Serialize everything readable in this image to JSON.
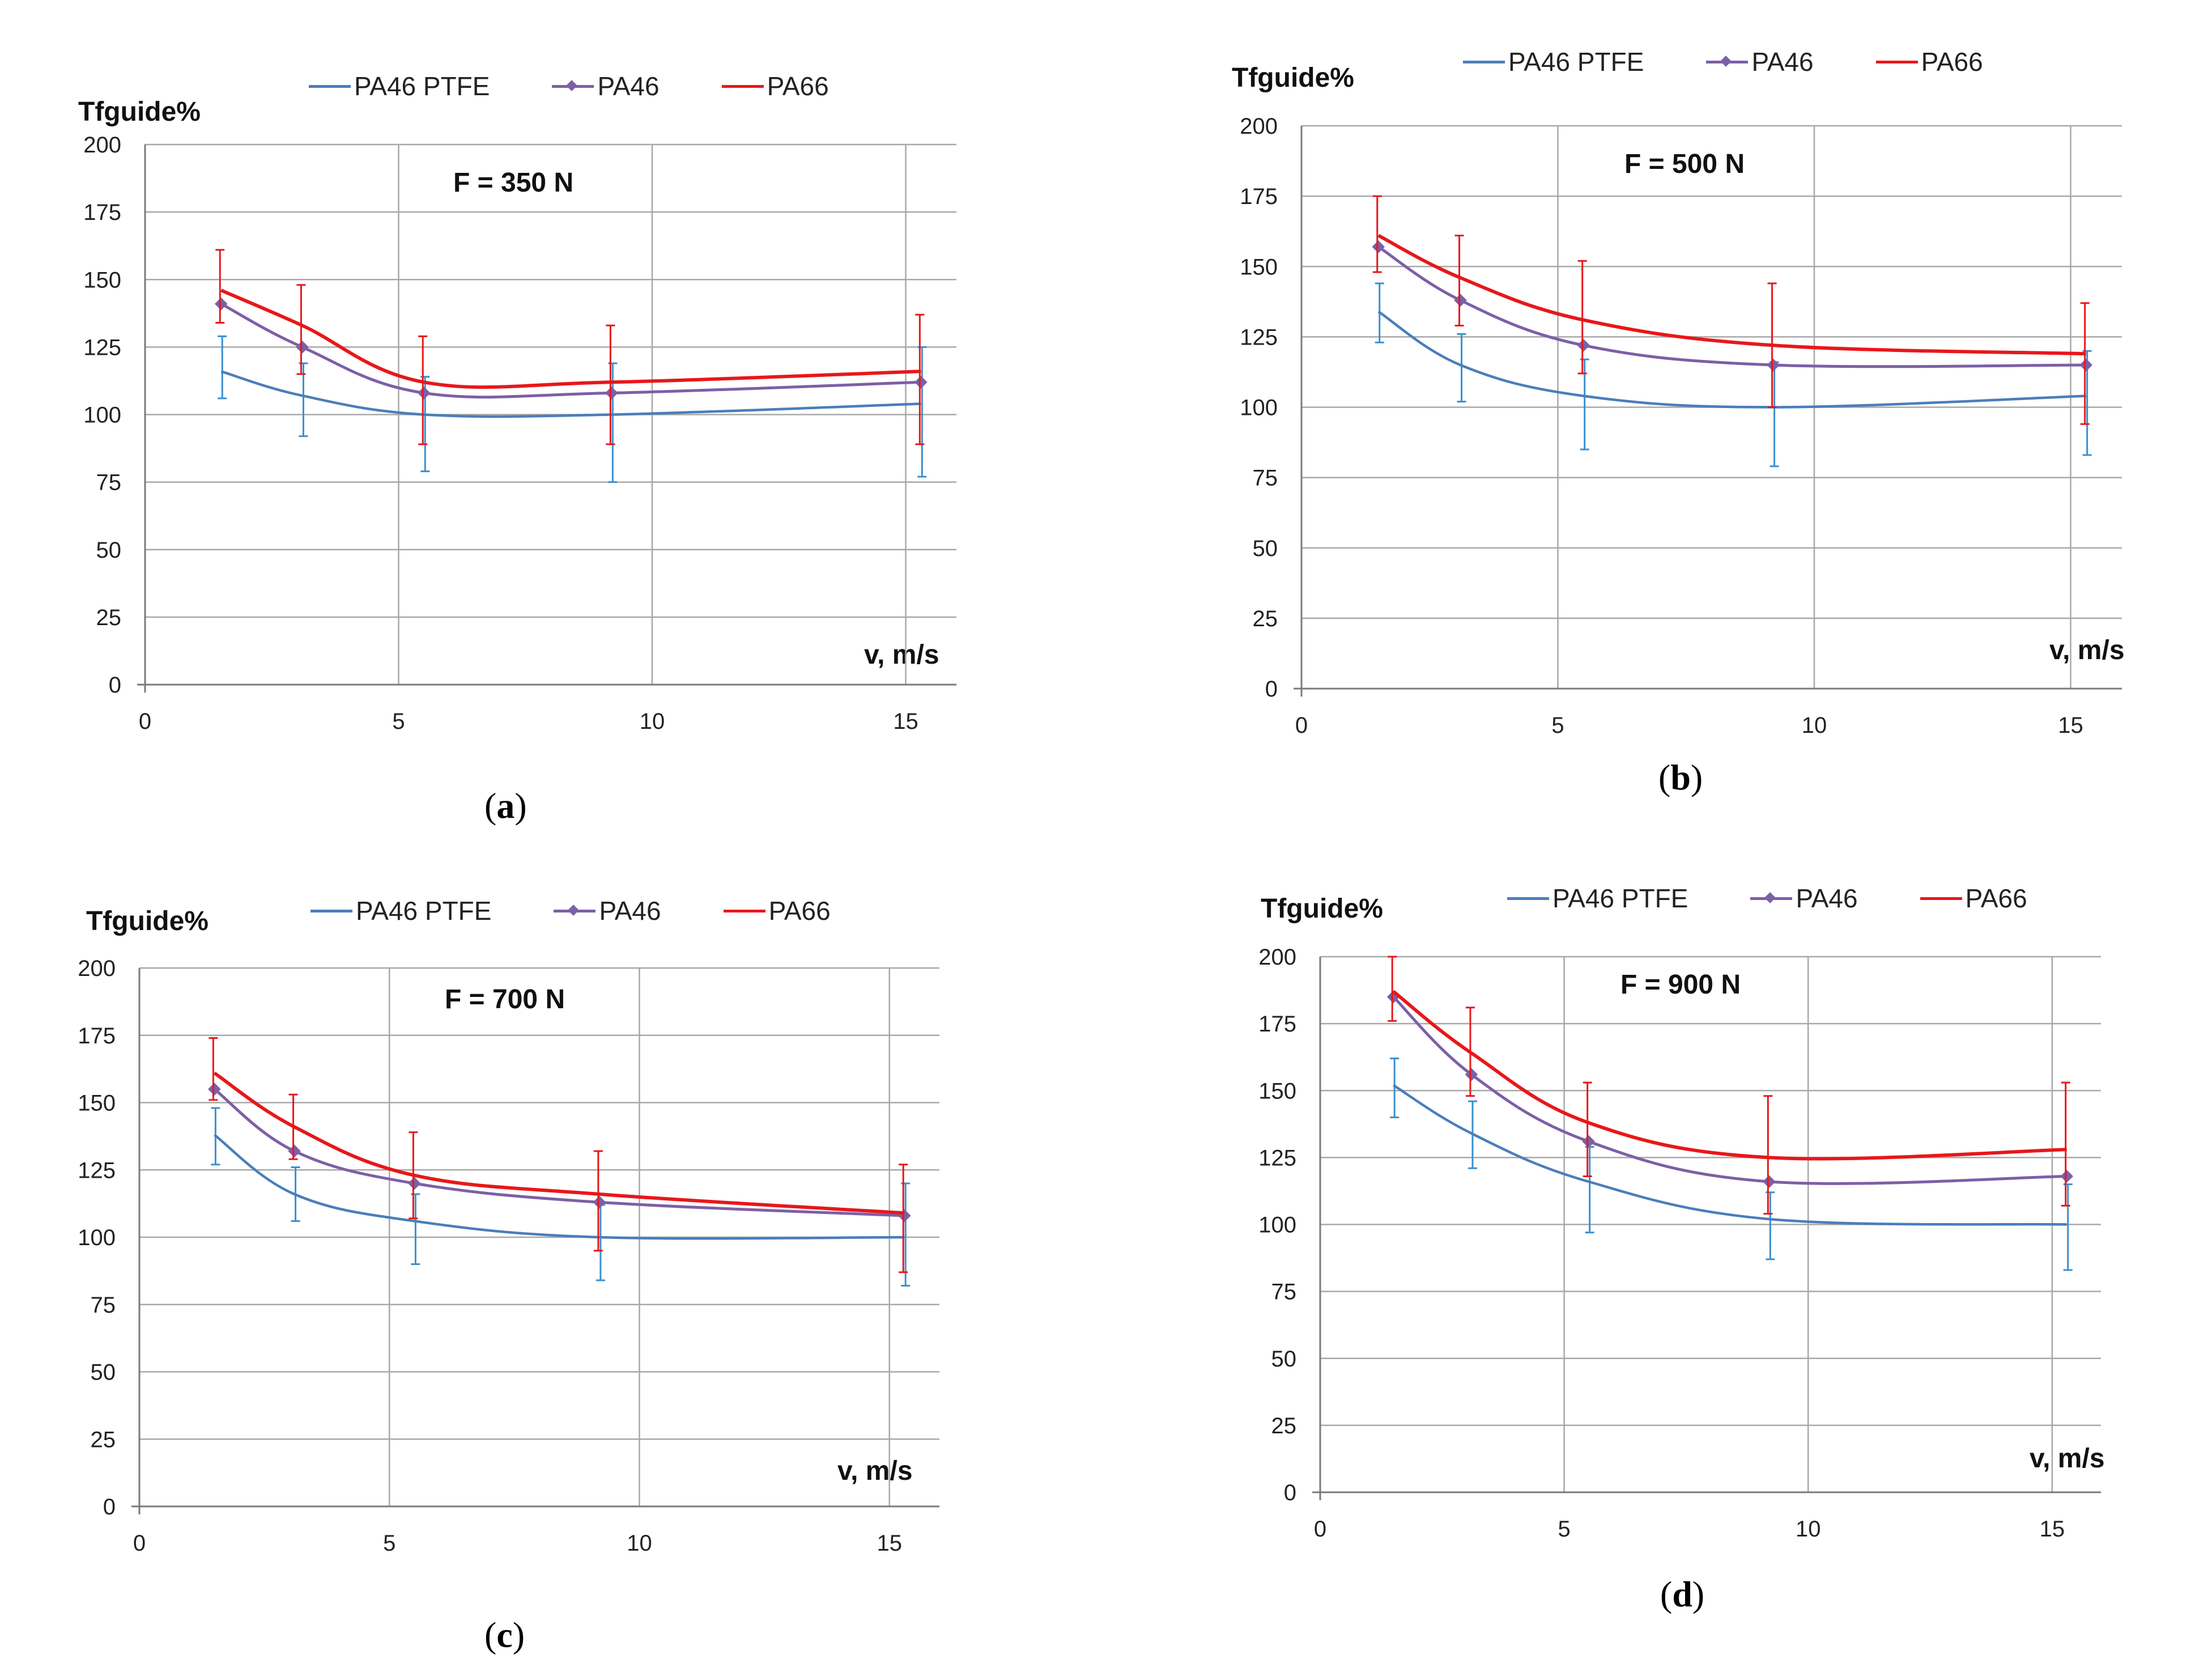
{
  "colors": {
    "ptfe": "#4a7ebb",
    "pa46": "#7d5fa6",
    "pa66": "#e8171a",
    "ptfe_err": "#3a8fd0",
    "pa66_err": "#e8171a",
    "grid": "#a8a8a8",
    "axis": "#7a7a7a"
  },
  "legend": {
    "ptfe": "PA46 PTFE",
    "pa46": "PA46",
    "pa66": "PA66"
  },
  "chart_data": [
    {
      "type": "line",
      "panel": "a",
      "caption_letter": "a",
      "title": "F = 350 N",
      "ylabel": "Tfguide%",
      "xlabel": "v, m/s",
      "xlim": [
        0,
        16
      ],
      "ylim": [
        0,
        200
      ],
      "xticks": [
        "0",
        "5",
        "10",
        "15"
      ],
      "yticks": [
        "0",
        "25",
        "50",
        "75",
        "100",
        "125",
        "150",
        "175",
        "200"
      ],
      "x": [
        1.5,
        3.1,
        5.5,
        9.2,
        15.3
      ],
      "series": [
        {
          "name": "PA46 PTFE",
          "key": "ptfe",
          "values": [
            116,
            107,
            100,
            100,
            104
          ],
          "err_lo": [
            10,
            15,
            21,
            25,
            27
          ],
          "err_hi": [
            13,
            12,
            14,
            19,
            21
          ]
        },
        {
          "name": "PA46",
          "key": "pa46",
          "values": [
            141,
            125,
            108,
            108,
            112
          ],
          "err_lo": [],
          "err_hi": []
        },
        {
          "name": "PA66",
          "key": "pa66",
          "values": [
            146,
            133,
            112,
            112,
            116
          ],
          "err_lo": [
            12,
            18,
            23,
            23,
            27
          ],
          "err_hi": [
            15,
            15,
            17,
            21,
            21
          ]
        }
      ]
    },
    {
      "type": "line",
      "panel": "b",
      "caption_letter": "b",
      "title": "F = 500 N",
      "ylabel": "Tfguide%",
      "xlabel": "v, m/s",
      "xlim": [
        0,
        16
      ],
      "ylim": [
        0,
        200
      ],
      "xticks": [
        "0",
        "5",
        "10",
        "15"
      ],
      "yticks": [
        "0",
        "25",
        "50",
        "75",
        "100",
        "125",
        "150",
        "175",
        "200"
      ],
      "x": [
        1.5,
        3.1,
        5.5,
        9.2,
        15.3
      ],
      "series": [
        {
          "name": "PA46 PTFE",
          "key": "ptfe",
          "values": [
            134,
            115,
            104,
            100,
            104
          ],
          "err_lo": [
            11,
            13,
            19,
            21,
            21
          ],
          "err_hi": [
            10,
            11,
            13,
            16,
            16
          ]
        },
        {
          "name": "PA46",
          "key": "pa46",
          "values": [
            157,
            138,
            122,
            115,
            115
          ],
          "err_lo": [],
          "err_hi": []
        },
        {
          "name": "PA66",
          "key": "pa66",
          "values": [
            161,
            146,
            131,
            122,
            119
          ],
          "err_lo": [
            13,
            17,
            19,
            22,
            25
          ],
          "err_hi": [
            14,
            15,
            21,
            22,
            18
          ]
        }
      ]
    },
    {
      "type": "line",
      "panel": "c",
      "caption_letter": "c",
      "title": "F = 700 N",
      "ylabel": "Tfguide%",
      "xlabel": "v, m/s",
      "xlim": [
        0,
        16
      ],
      "ylim": [
        0,
        200
      ],
      "xticks": [
        "0",
        "5",
        "10",
        "15"
      ],
      "yticks": [
        "0",
        "25",
        "50",
        "75",
        "100",
        "125",
        "150",
        "175",
        "200"
      ],
      "x": [
        1.5,
        3.1,
        5.5,
        9.2,
        15.3
      ],
      "series": [
        {
          "name": "PA46 PTFE",
          "key": "ptfe",
          "values": [
            138,
            116,
            106,
            100,
            100
          ],
          "err_lo": [
            11,
            10,
            16,
            16,
            18
          ],
          "err_hi": [
            10,
            10,
            10,
            12,
            20
          ]
        },
        {
          "name": "PA46",
          "key": "pa46",
          "values": [
            155,
            132,
            120,
            113,
            108
          ],
          "err_lo": [],
          "err_hi": []
        },
        {
          "name": "PA66",
          "key": "pa66",
          "values": [
            161,
            141,
            123,
            116,
            109
          ],
          "err_lo": [
            10,
            12,
            16,
            21,
            22
          ],
          "err_hi": [
            13,
            12,
            16,
            16,
            18
          ]
        }
      ]
    },
    {
      "type": "line",
      "panel": "d",
      "caption_letter": "d",
      "title": "F = 900 N",
      "ylabel": "Tfguide%",
      "xlabel": "v, m/s",
      "xlim": [
        0,
        16
      ],
      "ylim": [
        0,
        200
      ],
      "xticks": [
        "0",
        "5",
        "10",
        "15"
      ],
      "yticks": [
        "0",
        "25",
        "50",
        "75",
        "100",
        "125",
        "150",
        "175",
        "200"
      ],
      "x": [
        1.5,
        3.1,
        5.5,
        9.2,
        15.3
      ],
      "series": [
        {
          "name": "PA46 PTFE",
          "key": "ptfe",
          "values": [
            152,
            134,
            116,
            102,
            100
          ],
          "err_lo": [
            12,
            13,
            19,
            15,
            17
          ],
          "err_hi": [
            10,
            12,
            13,
            10,
            15
          ]
        },
        {
          "name": "PA46",
          "key": "pa46",
          "values": [
            185,
            156,
            131,
            116,
            118
          ],
          "err_lo": [],
          "err_hi": []
        },
        {
          "name": "PA66",
          "key": "pa66",
          "values": [
            187,
            164,
            138,
            125,
            128
          ],
          "err_lo": [
            11,
            16,
            20,
            21,
            21
          ],
          "err_hi": [
            13,
            17,
            15,
            23,
            25
          ]
        }
      ]
    }
  ]
}
